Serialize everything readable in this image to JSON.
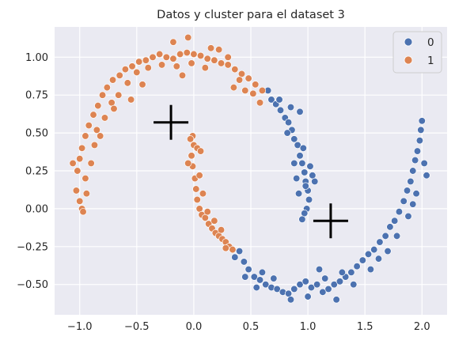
{
  "chart_data": {
    "type": "scatter",
    "title": "Datos y cluster para el dataset 3",
    "xlabel": "",
    "ylabel": "",
    "xlim": [
      -1.22,
      2.22
    ],
    "ylim": [
      -0.7,
      1.2
    ],
    "x_ticks": [
      -1.0,
      -0.5,
      0.0,
      0.5,
      1.0,
      1.5,
      2.0
    ],
    "x_tick_labels": [
      "−1.0",
      "−0.5",
      "0.0",
      "0.5",
      "1.0",
      "1.5",
      "2.0"
    ],
    "y_ticks": [
      -0.5,
      -0.25,
      0.0,
      0.25,
      0.5,
      0.75,
      1.0
    ],
    "y_tick_labels": [
      "−0.50",
      "−0.25",
      "0.00",
      "0.25",
      "0.50",
      "0.75",
      "1.00"
    ],
    "grid": true,
    "background": "#eaeaf2",
    "legend": {
      "placement": "top-right",
      "entries": [
        "0",
        "1"
      ]
    },
    "series": [
      {
        "name": "0",
        "color": "#4c72b0",
        "points": [
          [
            0.65,
            0.78
          ],
          [
            0.68,
            0.72
          ],
          [
            0.72,
            0.69
          ],
          [
            0.76,
            0.65
          ],
          [
            0.8,
            0.6
          ],
          [
            0.83,
            0.57
          ],
          [
            0.86,
            0.52
          ],
          [
            0.88,
            0.46
          ],
          [
            0.91,
            0.42
          ],
          [
            0.93,
            0.35
          ],
          [
            0.95,
            0.3
          ],
          [
            0.97,
            0.24
          ],
          [
            0.98,
            0.18
          ],
          [
            1.0,
            0.12
          ],
          [
            1.01,
            0.06
          ],
          [
            0.99,
            0.0
          ],
          [
            0.97,
            -0.03
          ],
          [
            0.92,
            0.1
          ],
          [
            0.9,
            0.2
          ],
          [
            0.96,
            0.4
          ],
          [
            0.75,
            0.72
          ],
          [
            0.85,
            0.67
          ],
          [
            0.93,
            0.64
          ],
          [
            1.02,
            0.28
          ],
          [
            1.06,
            0.18
          ],
          [
            0.95,
            -0.07
          ],
          [
            0.98,
            0.15
          ],
          [
            1.04,
            0.22
          ],
          [
            0.88,
            0.3
          ],
          [
            0.82,
            0.5
          ],
          [
            0.4,
            -0.28
          ],
          [
            0.44,
            -0.35
          ],
          [
            0.48,
            -0.4
          ],
          [
            0.53,
            -0.45
          ],
          [
            0.58,
            -0.47
          ],
          [
            0.63,
            -0.5
          ],
          [
            0.68,
            -0.52
          ],
          [
            0.73,
            -0.53
          ],
          [
            0.78,
            -0.55
          ],
          [
            0.83,
            -0.56
          ],
          [
            0.88,
            -0.53
          ],
          [
            0.93,
            -0.5
          ],
          [
            0.98,
            -0.48
          ],
          [
            1.03,
            -0.52
          ],
          [
            1.08,
            -0.5
          ],
          [
            1.13,
            -0.55
          ],
          [
            1.18,
            -0.53
          ],
          [
            1.23,
            -0.5
          ],
          [
            1.28,
            -0.48
          ],
          [
            1.33,
            -0.45
          ],
          [
            1.38,
            -0.42
          ],
          [
            1.43,
            -0.38
          ],
          [
            1.48,
            -0.34
          ],
          [
            1.53,
            -0.3
          ],
          [
            1.58,
            -0.27
          ],
          [
            1.63,
            -0.22
          ],
          [
            1.68,
            -0.18
          ],
          [
            1.72,
            -0.12
          ],
          [
            1.76,
            -0.08
          ],
          [
            1.8,
            -0.02
          ],
          [
            1.84,
            0.05
          ],
          [
            1.87,
            0.12
          ],
          [
            1.9,
            0.18
          ],
          [
            1.92,
            0.25
          ],
          [
            1.94,
            0.32
          ],
          [
            1.96,
            0.38
          ],
          [
            1.98,
            0.45
          ],
          [
            1.99,
            0.52
          ],
          [
            2.0,
            0.58
          ],
          [
            2.02,
            0.3
          ],
          [
            2.04,
            0.22
          ],
          [
            1.95,
            0.1
          ],
          [
            1.92,
            0.03
          ],
          [
            1.88,
            -0.05
          ],
          [
            0.45,
            -0.45
          ],
          [
            0.55,
            -0.52
          ],
          [
            0.7,
            -0.46
          ],
          [
            0.85,
            -0.6
          ],
          [
            1.0,
            -0.58
          ],
          [
            1.15,
            -0.46
          ],
          [
            1.25,
            -0.6
          ],
          [
            1.4,
            -0.5
          ],
          [
            1.55,
            -0.4
          ],
          [
            1.62,
            -0.33
          ],
          [
            1.7,
            -0.28
          ],
          [
            0.36,
            -0.32
          ],
          [
            0.6,
            -0.42
          ],
          [
            1.1,
            -0.4
          ],
          [
            1.3,
            -0.42
          ],
          [
            1.78,
            -0.18
          ]
        ]
      },
      {
        "name": "1",
        "color": "#dd8452",
        "points": [
          [
            -1.02,
            0.25
          ],
          [
            -1.0,
            0.33
          ],
          [
            -0.98,
            0.4
          ],
          [
            -0.95,
            0.48
          ],
          [
            -0.92,
            0.55
          ],
          [
            -0.88,
            0.62
          ],
          [
            -0.84,
            0.68
          ],
          [
            -0.8,
            0.75
          ],
          [
            -0.76,
            0.8
          ],
          [
            -0.71,
            0.85
          ],
          [
            -0.65,
            0.88
          ],
          [
            -0.6,
            0.92
          ],
          [
            -0.54,
            0.94
          ],
          [
            -0.48,
            0.97
          ],
          [
            -0.42,
            0.98
          ],
          [
            -0.36,
            1.0
          ],
          [
            -0.3,
            1.02
          ],
          [
            -0.24,
            1.0
          ],
          [
            -0.18,
            0.99
          ],
          [
            -0.12,
            1.02
          ],
          [
            -0.06,
            1.03
          ],
          [
            0.0,
            1.02
          ],
          [
            0.06,
            1.01
          ],
          [
            0.12,
            0.99
          ],
          [
            0.18,
            0.98
          ],
          [
            0.24,
            0.96
          ],
          [
            0.3,
            0.95
          ],
          [
            0.36,
            0.92
          ],
          [
            0.42,
            0.89
          ],
          [
            0.48,
            0.86
          ],
          [
            0.54,
            0.82
          ],
          [
            0.6,
            0.78
          ],
          [
            -1.0,
            0.05
          ],
          [
            -0.98,
            0.0
          ],
          [
            -1.03,
            0.12
          ],
          [
            -0.95,
            0.2
          ],
          [
            -0.9,
            0.3
          ],
          [
            -0.87,
            0.42
          ],
          [
            -0.85,
            0.52
          ],
          [
            -0.78,
            0.6
          ],
          [
            -0.72,
            0.7
          ],
          [
            -0.66,
            0.75
          ],
          [
            -0.58,
            0.83
          ],
          [
            -0.5,
            0.9
          ],
          [
            -0.4,
            0.93
          ],
          [
            -0.28,
            0.95
          ],
          [
            -0.15,
            0.94
          ],
          [
            -0.02,
            0.96
          ],
          [
            0.1,
            0.93
          ],
          [
            0.22,
            1.05
          ],
          [
            0.3,
            1.0
          ],
          [
            0.4,
            0.85
          ],
          [
            0.52,
            0.76
          ],
          [
            -0.18,
            1.1
          ],
          [
            -0.05,
            1.13
          ],
          [
            -0.01,
            0.48
          ],
          [
            0.0,
            0.42
          ],
          [
            -0.02,
            0.35
          ],
          [
            -0.01,
            0.28
          ],
          [
            0.01,
            0.2
          ],
          [
            0.02,
            0.13
          ],
          [
            0.03,
            0.06
          ],
          [
            0.05,
            0.0
          ],
          [
            0.07,
            -0.04
          ],
          [
            0.1,
            -0.06
          ],
          [
            0.13,
            -0.1
          ],
          [
            0.16,
            -0.13
          ],
          [
            0.19,
            -0.16
          ],
          [
            0.22,
            -0.18
          ],
          [
            0.25,
            -0.2
          ],
          [
            0.28,
            -0.22
          ],
          [
            0.31,
            -0.25
          ],
          [
            0.34,
            -0.27
          ],
          [
            -0.05,
            0.3
          ],
          [
            0.03,
            0.4
          ],
          [
            0.05,
            0.22
          ],
          [
            0.08,
            0.1
          ],
          [
            0.12,
            -0.02
          ],
          [
            0.18,
            -0.08
          ],
          [
            0.24,
            -0.14
          ],
          [
            -1.06,
            0.3
          ],
          [
            -0.94,
            0.1
          ],
          [
            -0.97,
            -0.02
          ],
          [
            -0.82,
            0.48
          ],
          [
            -0.7,
            0.66
          ],
          [
            -0.55,
            0.72
          ],
          [
            -0.45,
            0.82
          ],
          [
            -0.1,
            0.88
          ],
          [
            0.15,
            1.06
          ],
          [
            0.35,
            0.8
          ],
          [
            0.45,
            0.78
          ],
          [
            0.58,
            0.7
          ],
          [
            0.28,
            -0.26
          ],
          [
            0.06,
            0.38
          ],
          [
            -0.03,
            0.46
          ]
        ]
      }
    ],
    "markers": [
      {
        "label": "+",
        "x": -0.2,
        "y": 0.57,
        "color": "#000000"
      },
      {
        "label": "+",
        "x": 1.2,
        "y": -0.08,
        "color": "#000000"
      }
    ]
  }
}
